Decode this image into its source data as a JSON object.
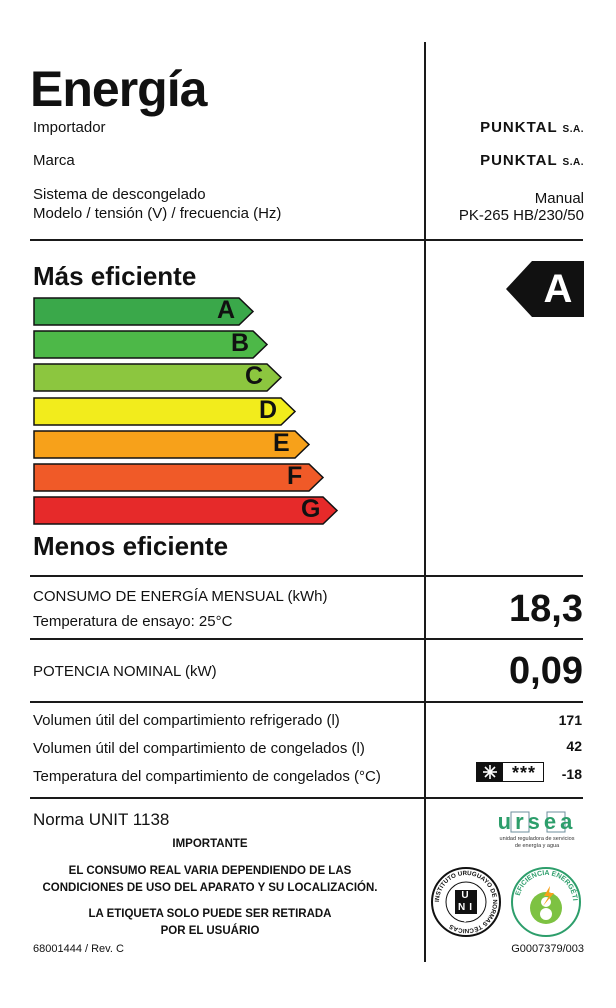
{
  "header": {
    "title": "Energía",
    "rows": [
      {
        "label": "Importador",
        "value": "PUNKTAL",
        "suffix": "S.A."
      },
      {
        "label": "Marca",
        "value": "PUNKTAL",
        "suffix": "S.A."
      }
    ],
    "defrost_label": "Sistema de descongelado",
    "defrost_value": "Manual",
    "model_label": "Modelo / tensión (V) / frecuencia (Hz)",
    "model_value": "PK-265 HB/230/50"
  },
  "efficiency": {
    "top_label": "Más eficiente",
    "bottom_label": "Menos eficiente",
    "rating": "A",
    "classes": [
      {
        "letter": "A",
        "color": "#3aa84a"
      },
      {
        "letter": "B",
        "color": "#4db848"
      },
      {
        "letter": "C",
        "color": "#8cc63f"
      },
      {
        "letter": "D",
        "color": "#f2ec1c"
      },
      {
        "letter": "E",
        "color": "#f7a11a"
      },
      {
        "letter": "F",
        "color": "#f05a28"
      },
      {
        "letter": "G",
        "color": "#e62a2a"
      }
    ]
  },
  "consumption": {
    "label": "CONSUMO DE ENERGÍA MENSUAL (kWh)",
    "sub_label": "Temperatura de ensayo: 25°C",
    "value": "18,3"
  },
  "power": {
    "label": "POTENCIA NOMINAL (kW)",
    "value": "0,09"
  },
  "specs": [
    {
      "label": "Volumen útil del compartimiento refrigerado (l)",
      "value": "171"
    },
    {
      "label": "Volumen útil del compartimiento de congelados (l)",
      "value": "42"
    },
    {
      "label": "Temperatura del compartimiento de congelados (°C)",
      "value": "-18",
      "stars": "***"
    }
  ],
  "footer": {
    "norma": "Norma UNIT 1138",
    "important_title": "IMPORTANTE",
    "notice1_line1": "EL CONSUMO REAL VARIA DEPENDIENDO DE LAS",
    "notice1_line2": "CONDICIONES DE USO DEL APARATO Y SU LOCALIZACIÓN.",
    "notice2_line1": "LA ETIQUETA SOLO PUEDE SER RETIRADA",
    "notice2_line2": "POR EL USUÁRIO",
    "ref_left": "68001444 / Rev. C",
    "ref_right": "G0007379/003",
    "ursea_logo": "ursea",
    "ursea_sub1": "unidad reguladora de servicios",
    "ursea_sub2": "de energía y agua",
    "unit_seal_text": "INSTITUTO URUGUAYO DE NORMAS TÉCNICAS",
    "unit_seal_letters": "UNIT",
    "eff_seal_text": "EFICIENCIA ENERGÉTICA"
  }
}
